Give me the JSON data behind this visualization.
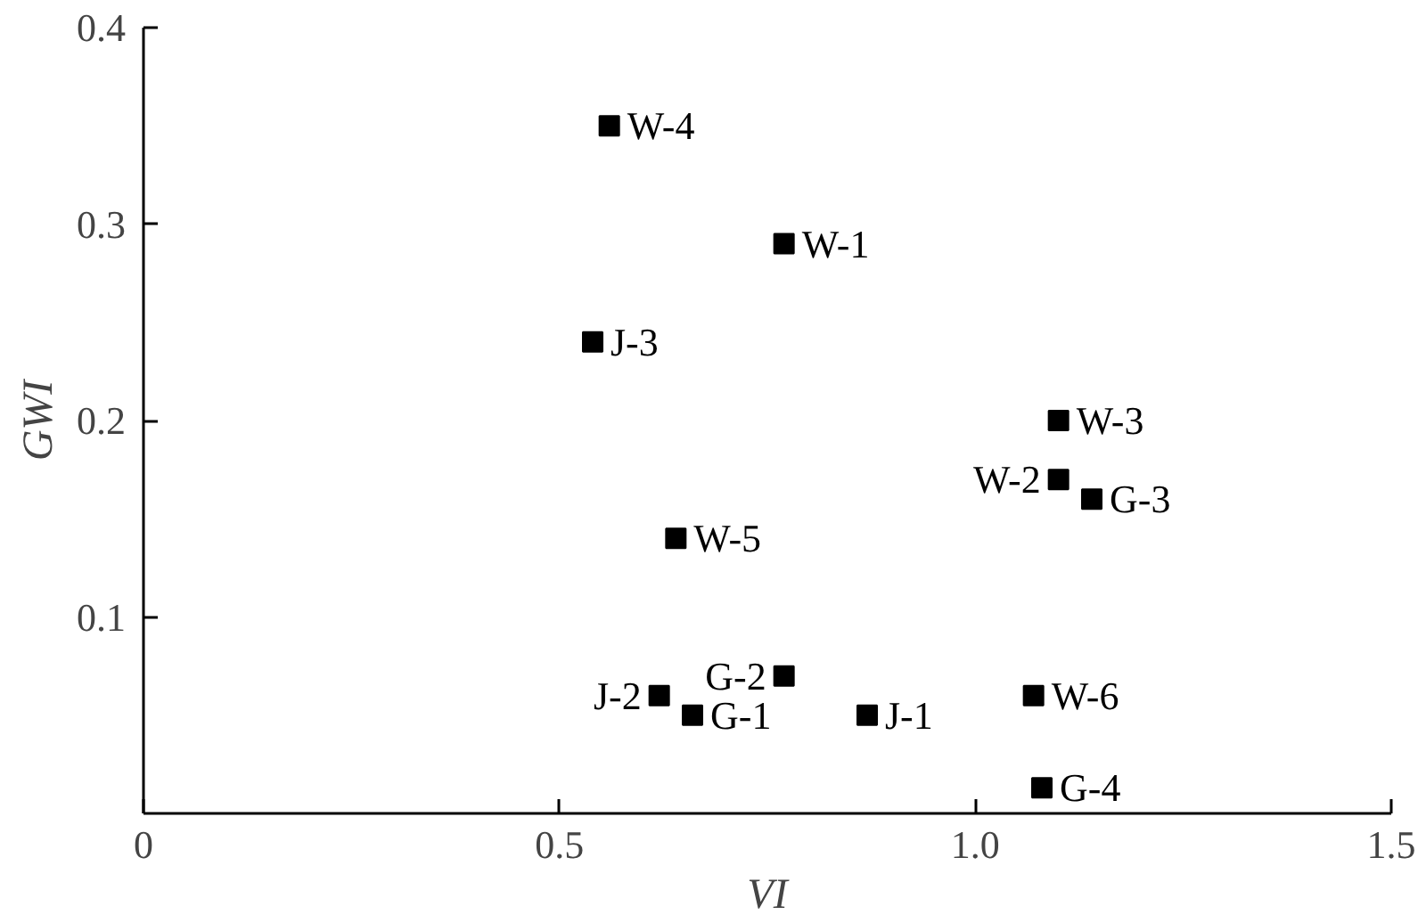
{
  "chart_data": {
    "type": "scatter",
    "xlabel": "VI",
    "ylabel": "GWI",
    "marker": "square",
    "grid": false,
    "legend": false,
    "xlim": [
      0,
      1.5
    ],
    "xticks": [
      0,
      0.5,
      {
        "value": 1.0,
        "label": "1.0"
      },
      1.5
    ],
    "ylim": [
      0,
      0.4
    ],
    "yticks": [
      0.1,
      0.2,
      0.3,
      0.4
    ],
    "series": [
      {
        "name": "W-4",
        "color": "#000000",
        "x": [
          0.56
        ],
        "values": [
          0.35
        ]
      },
      {
        "name": "W-1",
        "color": "#000000",
        "x": [
          0.77
        ],
        "values": [
          0.29
        ]
      },
      {
        "name": "J-3",
        "color": "#000000",
        "x": [
          0.54
        ],
        "values": [
          0.24
        ]
      },
      {
        "name": "W-3",
        "color": "#000000",
        "x": [
          1.1
        ],
        "values": [
          0.2
        ]
      },
      {
        "name": "W-2",
        "color": "#000000",
        "x": [
          1.1
        ],
        "values": [
          0.17
        ]
      },
      {
        "name": "G-3",
        "color": "#000000",
        "x": [
          1.14
        ],
        "values": [
          0.16
        ]
      },
      {
        "name": "W-5",
        "color": "#000000",
        "x": [
          0.64
        ],
        "values": [
          0.14
        ]
      },
      {
        "name": "G-2",
        "color": "#000000",
        "x": [
          0.77
        ],
        "values": [
          0.07
        ]
      },
      {
        "name": "J-2",
        "color": "#000000",
        "x": [
          0.62
        ],
        "values": [
          0.06
        ]
      },
      {
        "name": "G-1",
        "color": "#000000",
        "x": [
          0.66
        ],
        "values": [
          0.05
        ]
      },
      {
        "name": "J-1",
        "color": "#000000",
        "x": [
          0.87
        ],
        "values": [
          0.05
        ]
      },
      {
        "name": "W-6",
        "color": "#000000",
        "x": [
          1.07
        ],
        "values": [
          0.06
        ]
      },
      {
        "name": "G-4",
        "color": "#000000",
        "x": [
          1.08
        ],
        "values": [
          0.013
        ]
      }
    ]
  }
}
